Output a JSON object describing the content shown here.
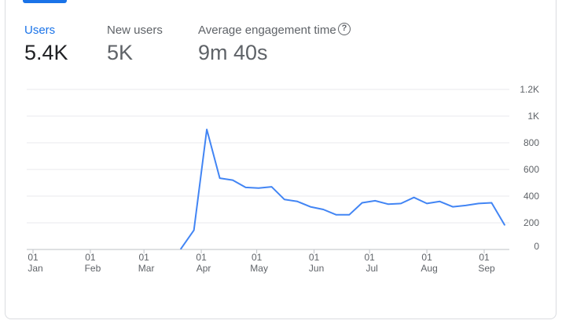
{
  "tabs": [
    {
      "label": "Users",
      "value": "5.4K",
      "active": true
    },
    {
      "label": "New users",
      "value": "5K",
      "active": false
    },
    {
      "label": "Average engagement time",
      "value": "9m 40s",
      "active": false,
      "help_icon": "help-circle-icon"
    }
  ],
  "colors": {
    "accent": "#1a73e8",
    "line": "#4285f4",
    "grid": "#e8eaed",
    "text": "#5f6368"
  },
  "chart_data": {
    "type": "line",
    "x_unit": "date",
    "x_ticks": [
      {
        "day": "01",
        "month": "Jan",
        "date": "2024-01-01"
      },
      {
        "day": "01",
        "month": "Feb",
        "date": "2024-02-01"
      },
      {
        "day": "01",
        "month": "Mar",
        "date": "2024-03-01"
      },
      {
        "day": "01",
        "month": "Apr",
        "date": "2024-04-01"
      },
      {
        "day": "01",
        "month": "May",
        "date": "2024-05-01"
      },
      {
        "day": "01",
        "month": "Jun",
        "date": "2024-06-01"
      },
      {
        "day": "01",
        "month": "Jul",
        "date": "2024-07-01"
      },
      {
        "day": "01",
        "month": "Aug",
        "date": "2024-08-01"
      },
      {
        "day": "01",
        "month": "Sep",
        "date": "2024-09-01"
      }
    ],
    "y_ticks": [
      "0",
      "200",
      "400",
      "600",
      "800",
      "1K",
      "1.2K"
    ],
    "ylim": [
      0,
      1200
    ],
    "y_axis_position": "right",
    "grid": true,
    "series": [
      {
        "color": "#4285f4",
        "points": [
          {
            "x": "2024-03-21",
            "y": 5
          },
          {
            "x": "2024-03-28",
            "y": 145
          },
          {
            "x": "2024-04-04",
            "y": 900
          },
          {
            "x": "2024-04-11",
            "y": 535
          },
          {
            "x": "2024-04-18",
            "y": 520
          },
          {
            "x": "2024-04-25",
            "y": 465
          },
          {
            "x": "2024-05-02",
            "y": 460
          },
          {
            "x": "2024-05-09",
            "y": 470
          },
          {
            "x": "2024-05-16",
            "y": 375
          },
          {
            "x": "2024-05-23",
            "y": 360
          },
          {
            "x": "2024-05-30",
            "y": 320
          },
          {
            "x": "2024-06-06",
            "y": 300
          },
          {
            "x": "2024-06-13",
            "y": 260
          },
          {
            "x": "2024-06-20",
            "y": 260
          },
          {
            "x": "2024-06-27",
            "y": 350
          },
          {
            "x": "2024-07-04",
            "y": 365
          },
          {
            "x": "2024-07-11",
            "y": 340
          },
          {
            "x": "2024-07-18",
            "y": 345
          },
          {
            "x": "2024-07-25",
            "y": 390
          },
          {
            "x": "2024-08-01",
            "y": 345
          },
          {
            "x": "2024-08-08",
            "y": 360
          },
          {
            "x": "2024-08-15",
            "y": 320
          },
          {
            "x": "2024-08-22",
            "y": 330
          },
          {
            "x": "2024-08-29",
            "y": 345
          },
          {
            "x": "2024-09-05",
            "y": 350
          },
          {
            "x": "2024-09-12",
            "y": 185
          }
        ]
      }
    ]
  }
}
